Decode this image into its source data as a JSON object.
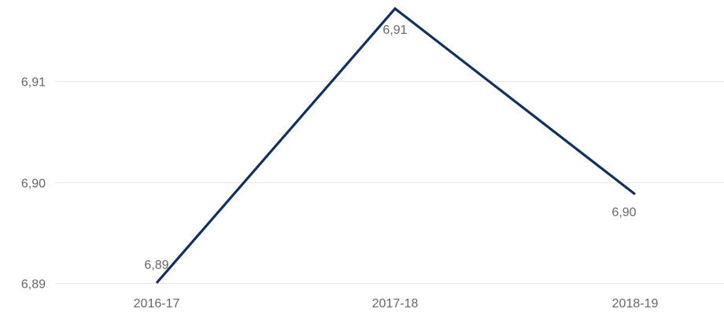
{
  "chart_data": {
    "type": "line",
    "title": "",
    "xlabel": "",
    "ylabel": "",
    "categories": [
      "2016-17",
      "2017-18",
      "2018-19"
    ],
    "series": [
      {
        "values": [
          6.8875,
          6.9147,
          6.8963
        ],
        "data_labels": [
          "6,89",
          "6,91",
          "6,90"
        ],
        "color": "#0e3160"
      }
    ],
    "y_ticks": [
      {
        "value": 6.8875,
        "label": "6,89"
      },
      {
        "value": 6.8975,
        "label": "6,90"
      },
      {
        "value": 6.9075,
        "label": "6,91"
      }
    ],
    "ylim": [
      6.8875,
      6.9147
    ],
    "grid": true,
    "legend": "none",
    "gridline_color": "#e6e6e6",
    "tick_label_color": "#666666"
  }
}
